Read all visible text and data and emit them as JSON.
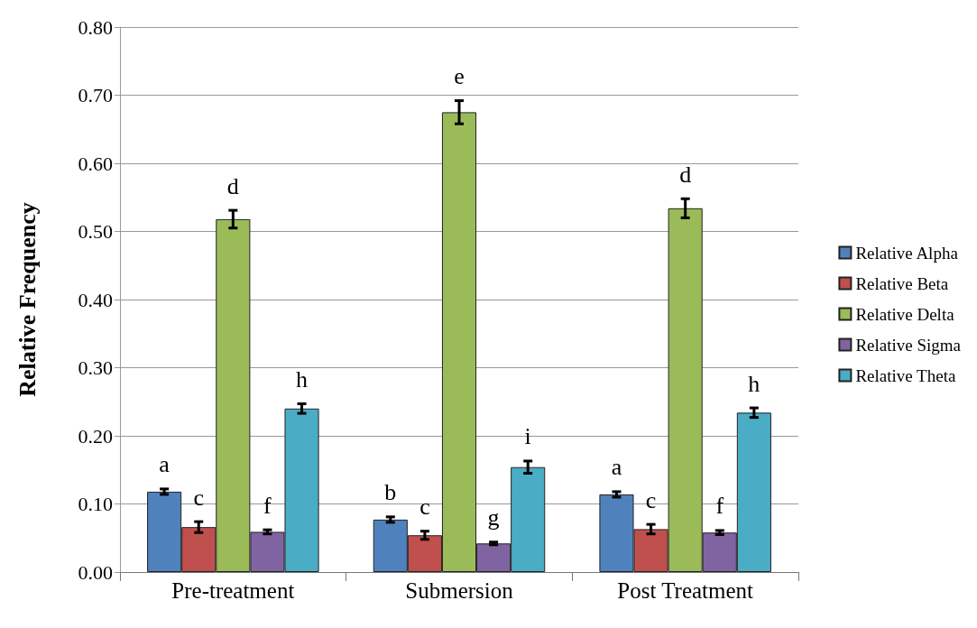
{
  "chart_data": {
    "type": "bar",
    "ylabel": "Relative Frequency",
    "categories": [
      "Pre-treatment",
      "Submersion",
      "Post Treatment"
    ],
    "series": [
      {
        "name": "Relative Alpha",
        "color": "#4f81bd",
        "values": [
          0.118,
          0.077,
          0.114
        ],
        "errors": [
          0.004,
          0.004,
          0.004
        ],
        "value_labels": [
          "a",
          "b",
          "a"
        ]
      },
      {
        "name": "Relative Beta",
        "color": "#c0504d",
        "values": [
          0.066,
          0.054,
          0.063
        ],
        "errors": [
          0.008,
          0.006,
          0.007
        ],
        "value_labels": [
          "c",
          "c",
          "c"
        ]
      },
      {
        "name": "Relative Delta",
        "color": "#9bbb59",
        "values": [
          0.518,
          0.675,
          0.534
        ],
        "errors": [
          0.013,
          0.017,
          0.014
        ],
        "value_labels": [
          "d",
          "e",
          "d"
        ]
      },
      {
        "name": "Relative Sigma",
        "color": "#8064a2",
        "values": [
          0.059,
          0.042,
          0.058
        ],
        "errors": [
          0.003,
          0.002,
          0.003
        ],
        "value_labels": [
          "f",
          "g",
          "f"
        ]
      },
      {
        "name": "Relative Theta",
        "color": "#4bacc6",
        "values": [
          0.24,
          0.154,
          0.234
        ],
        "errors": [
          0.007,
          0.009,
          0.007
        ],
        "value_labels": [
          "h",
          "i",
          "h"
        ]
      }
    ],
    "ylim": [
      0,
      0.8
    ],
    "yticks": [
      {
        "value": 0,
        "label": "0.00"
      },
      {
        "value": 0.1,
        "label": "0.10"
      },
      {
        "value": 0.2,
        "label": "0.20"
      },
      {
        "value": 0.3,
        "label": "0.30"
      },
      {
        "value": 0.4,
        "label": "0.40"
      },
      {
        "value": 0.5,
        "label": "0.50"
      },
      {
        "value": 0.6,
        "label": "0.60"
      },
      {
        "value": 0.7,
        "label": "0.70"
      },
      {
        "value": 0.8,
        "label": "0.80"
      }
    ],
    "grid": "y",
    "legend": "right"
  }
}
